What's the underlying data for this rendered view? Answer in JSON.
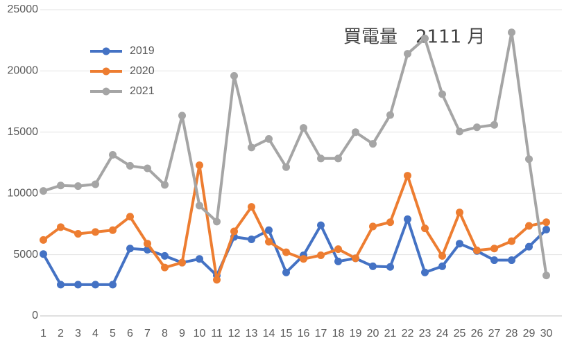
{
  "chart_data": {
    "type": "line",
    "title": "買電量　2111 月",
    "categories": [
      "1",
      "2",
      "3",
      "4",
      "5",
      "6",
      "7",
      "8",
      "9",
      "10",
      "11",
      "12",
      "13",
      "14",
      "15",
      "16",
      "17",
      "18",
      "19",
      "20",
      "21",
      "22",
      "23",
      "24",
      "25",
      "26",
      "27",
      "28",
      "29",
      "30"
    ],
    "series": [
      {
        "name": "2019",
        "color": "#4472c4",
        "values": [
          5050,
          2550,
          2550,
          2550,
          2550,
          5500,
          5400,
          4900,
          4350,
          4650,
          3300,
          6450,
          6250,
          7000,
          3550,
          4950,
          7400,
          4450,
          4700,
          4050,
          4000,
          7900,
          3550,
          4050,
          5900,
          5300,
          4550,
          4550,
          5650,
          7050
        ]
      },
      {
        "name": "2020",
        "color": "#ed7d31",
        "values": [
          6200,
          7250,
          6700,
          6850,
          7000,
          8100,
          5900,
          3950,
          4350,
          12300,
          2950,
          6900,
          8900,
          6050,
          5200,
          4650,
          4950,
          5450,
          4700,
          7300,
          7650,
          11450,
          7150,
          4900,
          8450,
          5350,
          5500,
          6100,
          7350,
          7650
        ]
      },
      {
        "name": "2021",
        "color": "#a5a5a5",
        "values": [
          10200,
          10650,
          10600,
          10750,
          13150,
          12250,
          12050,
          10700,
          16350,
          9000,
          7700,
          19600,
          13750,
          14450,
          12150,
          15350,
          12850,
          12850,
          15000,
          14050,
          16400,
          21400,
          22650,
          18100,
          15050,
          15400,
          15600,
          23150,
          12800,
          3300
        ]
      }
    ],
    "ylim": [
      0,
      25000
    ],
    "yticks": [
      0,
      5000,
      10000,
      15000,
      20000,
      25000
    ],
    "grid": true
  }
}
